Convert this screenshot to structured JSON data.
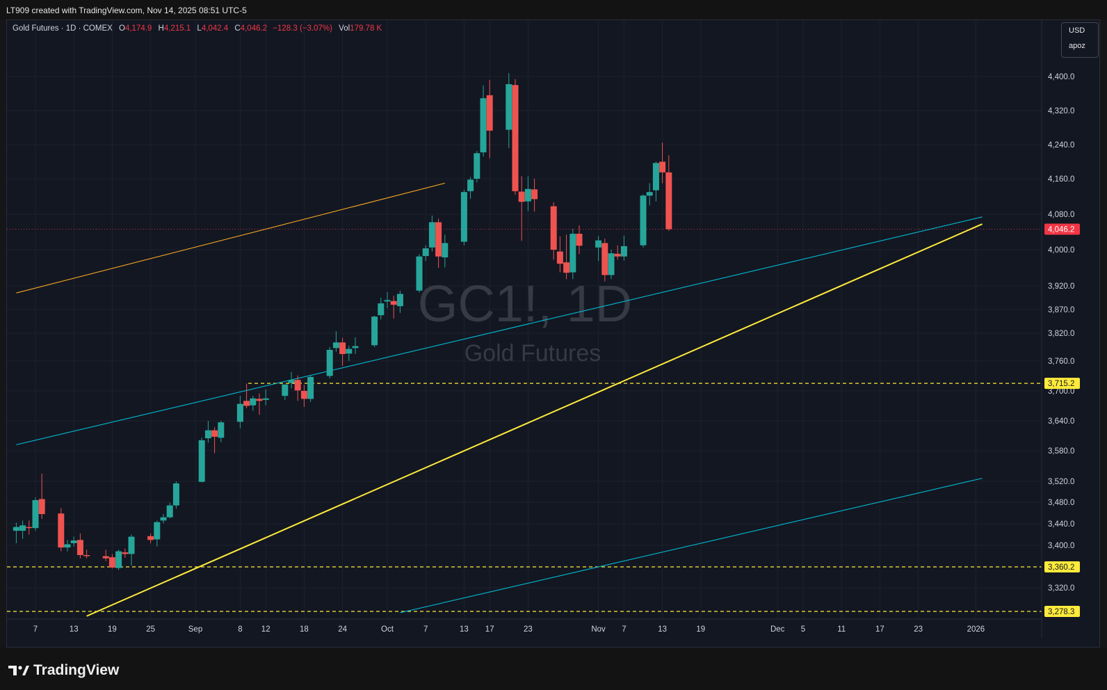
{
  "header": {
    "credit": "LT909 created with TradingView.com, Nov 14, 2025 08:51 UTC-5"
  },
  "legend": {
    "symbol": "Gold Futures · 1D · COMEX",
    "open_label": "O",
    "open": "4,174.9",
    "high_label": "H",
    "high": "4,215.1",
    "low_label": "L",
    "low": "4,042.4",
    "close_label": "C",
    "close": "4,046.2",
    "change": "−128.3 (−3.07%)",
    "vol_label": "Vol",
    "vol": "179.78 K"
  },
  "currency": {
    "unit": "USD",
    "scale": "apoz"
  },
  "watermark": {
    "ticker": "GC1!, 1D",
    "name": "Gold Futures"
  },
  "brand": {
    "name": "TradingView"
  },
  "colors": {
    "up": "#26a69a",
    "down": "#ef5350",
    "background": "#131722",
    "grid": "#1e222d",
    "yellow": "#ffeb3b",
    "cyan": "#00bcd4",
    "orange": "#f5a623",
    "price_label": "#f23645"
  },
  "chart_data": {
    "type": "candlestick",
    "title": "Gold Futures · 1D · COMEX",
    "y_ticks": [
      3320,
      3360.2,
      3400,
      3440,
      3480,
      3520,
      3580,
      3640,
      3700,
      3760,
      3820,
      3870,
      3920,
      4000,
      4080,
      4160,
      4240,
      4320,
      4400
    ],
    "y_tick_labels": [
      "3,320.0",
      "",
      "3,400.0",
      "3,440.0",
      "3,480.0",
      "3,520.0",
      "3,580.0",
      "3,640.0",
      "3,700.0",
      "3,760.0",
      "3,820.0",
      "3,870.0",
      "3,920.0",
      "4,000.0",
      "4,080.0",
      "4,160.0",
      "4,240.0",
      "4,320.0",
      "4,400.0"
    ],
    "x_ticks": [
      {
        "date": "2025-08-07",
        "label": "7"
      },
      {
        "date": "2025-08-13",
        "label": "13"
      },
      {
        "date": "2025-08-19",
        "label": "19"
      },
      {
        "date": "2025-08-25",
        "label": "25"
      },
      {
        "date": "2025-09-01",
        "label": "Sep"
      },
      {
        "date": "2025-09-08",
        "label": "8"
      },
      {
        "date": "2025-09-12",
        "label": "12"
      },
      {
        "date": "2025-09-18",
        "label": "18"
      },
      {
        "date": "2025-09-24",
        "label": "24"
      },
      {
        "date": "2025-10-01",
        "label": "Oct"
      },
      {
        "date": "2025-10-07",
        "label": "7"
      },
      {
        "date": "2025-10-13",
        "label": "13"
      },
      {
        "date": "2025-10-17",
        "label": "17"
      },
      {
        "date": "2025-10-23",
        "label": "23"
      },
      {
        "date": "2025-11-03",
        "label": "Nov"
      },
      {
        "date": "2025-11-07",
        "label": "7"
      },
      {
        "date": "2025-11-13",
        "label": "13"
      },
      {
        "date": "2025-11-19",
        "label": "19"
      },
      {
        "date": "2025-12-01",
        "label": "Dec"
      },
      {
        "date": "2025-12-05",
        "label": "5"
      },
      {
        "date": "2025-12-11",
        "label": "11"
      },
      {
        "date": "2025-12-17",
        "label": "17"
      },
      {
        "date": "2025-12-23",
        "label": "23"
      },
      {
        "date": "2026-01-01",
        "label": "2026"
      }
    ],
    "price_labels": [
      {
        "value": 4046.2,
        "text": "4,046.2",
        "color": "#f23645",
        "text_color": "#ffffff"
      },
      {
        "value": 3715.2,
        "text": "3,715.2",
        "color": "#ffeb3b",
        "text_color": "#131722"
      },
      {
        "value": 3360.2,
        "text": "3,360.2",
        "color": "#ffeb3b",
        "text_color": "#131722"
      },
      {
        "value": 3278.3,
        "text": "3,278.3",
        "color": "#ffeb3b",
        "text_color": "#131722"
      }
    ],
    "horizontal_lines": [
      {
        "value": 3715.2,
        "color": "#ffeb3b",
        "style": "dashed"
      },
      {
        "value": 3360.2,
        "color": "#ffeb3b",
        "style": "dashed"
      },
      {
        "value": 3278.3,
        "color": "#ffeb3b",
        "style": "dashed"
      },
      {
        "value": 4046.2,
        "color": "#f23645",
        "style": "dotted"
      }
    ],
    "trendlines": [
      {
        "color": "#f5a623",
        "from": {
          "date": "2025-08-04",
          "price": 3905
        },
        "to": {
          "date": "2025-10-10",
          "price": 4150
        }
      },
      {
        "color": "#00bcd4",
        "from": {
          "date": "2025-08-04",
          "price": 3592
        },
        "to": {
          "date": "2026-01-02",
          "price": 4074
        }
      },
      {
        "color": "#00bcd4",
        "from": {
          "date": "2025-10-03",
          "price": 3276
        },
        "to": {
          "date": "2026-01-02",
          "price": 3526
        }
      },
      {
        "color": "#ffeb3b",
        "from": {
          "date": "2025-08-15",
          "price": 3270
        },
        "to": {
          "date": "2026-01-02",
          "price": 4058
        }
      }
    ],
    "candles": [
      {
        "date": "2025-08-04",
        "o": 3427,
        "h": 3442,
        "l": 3404,
        "c": 3434
      },
      {
        "date": "2025-08-05",
        "o": 3427,
        "h": 3446,
        "l": 3412,
        "c": 3437
      },
      {
        "date": "2025-08-06",
        "o": 3434,
        "h": 3446,
        "l": 3420,
        "c": 3432
      },
      {
        "date": "2025-08-07",
        "o": 3432,
        "h": 3489,
        "l": 3427,
        "c": 3484
      },
      {
        "date": "2025-08-08",
        "o": 3486,
        "h": 3535,
        "l": 3449,
        "c": 3458
      },
      {
        "date": "2025-08-11",
        "o": 3459,
        "h": 3469,
        "l": 3389,
        "c": 3396
      },
      {
        "date": "2025-08-12",
        "o": 3396,
        "h": 3410,
        "l": 3389,
        "c": 3402
      },
      {
        "date": "2025-08-13",
        "o": 3404,
        "h": 3416,
        "l": 3398,
        "c": 3409
      },
      {
        "date": "2025-08-14",
        "o": 3410,
        "h": 3422,
        "l": 3376,
        "c": 3382
      },
      {
        "date": "2025-08-15",
        "o": 3382,
        "h": 3392,
        "l": 3376,
        "c": 3380
      },
      {
        "date": "2025-08-18",
        "o": 3380,
        "h": 3392,
        "l": 3371,
        "c": 3376
      },
      {
        "date": "2025-08-19",
        "o": 3378,
        "h": 3384,
        "l": 3357,
        "c": 3359
      },
      {
        "date": "2025-08-20",
        "o": 3358,
        "h": 3392,
        "l": 3354,
        "c": 3389
      },
      {
        "date": "2025-08-21",
        "o": 3387,
        "h": 3394,
        "l": 3377,
        "c": 3384
      },
      {
        "date": "2025-08-22",
        "o": 3384,
        "h": 3420,
        "l": 3363,
        "c": 3416
      },
      {
        "date": "2025-08-25",
        "o": 3417,
        "h": 3422,
        "l": 3404,
        "c": 3410
      },
      {
        "date": "2025-08-26",
        "o": 3411,
        "h": 3446,
        "l": 3398,
        "c": 3443
      },
      {
        "date": "2025-08-27",
        "o": 3446,
        "h": 3458,
        "l": 3441,
        "c": 3452
      },
      {
        "date": "2025-08-28",
        "o": 3452,
        "h": 3479,
        "l": 3450,
        "c": 3474
      },
      {
        "date": "2025-08-29",
        "o": 3474,
        "h": 3520,
        "l": 3468,
        "c": 3516
      },
      {
        "date": "2025-09-02",
        "o": 3519,
        "h": 3606,
        "l": 3518,
        "c": 3601
      },
      {
        "date": "2025-09-03",
        "o": 3605,
        "h": 3640,
        "l": 3596,
        "c": 3621
      },
      {
        "date": "2025-09-04",
        "o": 3621,
        "h": 3627,
        "l": 3575,
        "c": 3608
      },
      {
        "date": "2025-09-05",
        "o": 3606,
        "h": 3640,
        "l": 3597,
        "c": 3637
      },
      {
        "date": "2025-09-08",
        "o": 3638,
        "h": 3690,
        "l": 3625,
        "c": 3674
      },
      {
        "date": "2025-09-09",
        "o": 3680,
        "h": 3715,
        "l": 3665,
        "c": 3670
      },
      {
        "date": "2025-09-10",
        "o": 3671,
        "h": 3690,
        "l": 3660,
        "c": 3685
      },
      {
        "date": "2025-09-11",
        "o": 3684,
        "h": 3695,
        "l": 3652,
        "c": 3680
      },
      {
        "date": "2025-09-12",
        "o": 3682,
        "h": 3703,
        "l": 3671,
        "c": 3685
      },
      {
        "date": "2025-09-15",
        "o": 3690,
        "h": 3712,
        "l": 3682,
        "c": 3713
      },
      {
        "date": "2025-09-16",
        "o": 3716,
        "h": 3738,
        "l": 3705,
        "c": 3722
      },
      {
        "date": "2025-09-17",
        "o": 3722,
        "h": 3731,
        "l": 3680,
        "c": 3701
      },
      {
        "date": "2025-09-18",
        "o": 3700,
        "h": 3712,
        "l": 3668,
        "c": 3684
      },
      {
        "date": "2025-09-19",
        "o": 3684,
        "h": 3732,
        "l": 3678,
        "c": 3728
      },
      {
        "date": "2025-09-22",
        "o": 3730,
        "h": 3790,
        "l": 3725,
        "c": 3784
      },
      {
        "date": "2025-09-23",
        "o": 3788,
        "h": 3824,
        "l": 3780,
        "c": 3800
      },
      {
        "date": "2025-09-24",
        "o": 3800,
        "h": 3810,
        "l": 3750,
        "c": 3775
      },
      {
        "date": "2025-09-25",
        "o": 3776,
        "h": 3793,
        "l": 3760,
        "c": 3786
      },
      {
        "date": "2025-09-26",
        "o": 3788,
        "h": 3811,
        "l": 3775,
        "c": 3792
      },
      {
        "date": "2025-09-29",
        "o": 3794,
        "h": 3857,
        "l": 3790,
        "c": 3855
      },
      {
        "date": "2025-09-30",
        "o": 3858,
        "h": 3895,
        "l": 3849,
        "c": 3883
      },
      {
        "date": "2025-10-01",
        "o": 3887,
        "h": 3907,
        "l": 3873,
        "c": 3890
      },
      {
        "date": "2025-10-02",
        "o": 3888,
        "h": 3899,
        "l": 3851,
        "c": 3880
      },
      {
        "date": "2025-10-03",
        "o": 3877,
        "h": 3910,
        "l": 3863,
        "c": 3903
      },
      {
        "date": "2025-10-06",
        "o": 3910,
        "h": 3990,
        "l": 3906,
        "c": 3985
      },
      {
        "date": "2025-10-07",
        "o": 3986,
        "h": 4010,
        "l": 3975,
        "c": 4003
      },
      {
        "date": "2025-10-08",
        "o": 4005,
        "h": 4077,
        "l": 3996,
        "c": 4062
      },
      {
        "date": "2025-10-09",
        "o": 4062,
        "h": 4070,
        "l": 3960,
        "c": 3985
      },
      {
        "date": "2025-10-10",
        "o": 3983,
        "h": 4034,
        "l": 3961,
        "c": 4015
      },
      {
        "date": "2025-10-13",
        "o": 4018,
        "h": 4135,
        "l": 4010,
        "c": 4130
      },
      {
        "date": "2025-10-14",
        "o": 4132,
        "h": 4164,
        "l": 4115,
        "c": 4158
      },
      {
        "date": "2025-10-15",
        "o": 4160,
        "h": 4225,
        "l": 4152,
        "c": 4220
      },
      {
        "date": "2025-10-16",
        "o": 4222,
        "h": 4379,
        "l": 4212,
        "c": 4349
      },
      {
        "date": "2025-10-17",
        "o": 4356,
        "h": 4392,
        "l": 4208,
        "c": 4273
      },
      {
        "date": "2025-10-20",
        "o": 4275,
        "h": 4408,
        "l": 4232,
        "c": 4382
      },
      {
        "date": "2025-10-21",
        "o": 4380,
        "h": 4394,
        "l": 4124,
        "c": 4132
      },
      {
        "date": "2025-10-22",
        "o": 4131,
        "h": 4166,
        "l": 4020,
        "c": 4108
      },
      {
        "date": "2025-10-23",
        "o": 4109,
        "h": 4166,
        "l": 4087,
        "c": 4137
      },
      {
        "date": "2025-10-24",
        "o": 4136,
        "h": 4160,
        "l": 4086,
        "c": 4114
      },
      {
        "date": "2025-10-27",
        "o": 4098,
        "h": 4107,
        "l": 3978,
        "c": 4000
      },
      {
        "date": "2025-10-28",
        "o": 3996,
        "h": 4030,
        "l": 3950,
        "c": 3969
      },
      {
        "date": "2025-10-29",
        "o": 3972,
        "h": 4034,
        "l": 3935,
        "c": 3949
      },
      {
        "date": "2025-10-30",
        "o": 3950,
        "h": 4047,
        "l": 3935,
        "c": 4036
      },
      {
        "date": "2025-10-31",
        "o": 4036,
        "h": 4055,
        "l": 3990,
        "c": 4009
      },
      {
        "date": "2025-11-03",
        "o": 4005,
        "h": 4031,
        "l": 3975,
        "c": 4021
      },
      {
        "date": "2025-11-04",
        "o": 4015,
        "h": 4025,
        "l": 3930,
        "c": 3944
      },
      {
        "date": "2025-11-05",
        "o": 3944,
        "h": 4000,
        "l": 3935,
        "c": 3992
      },
      {
        "date": "2025-11-06",
        "o": 3991,
        "h": 4010,
        "l": 3978,
        "c": 3985
      },
      {
        "date": "2025-11-07",
        "o": 3985,
        "h": 4032,
        "l": 3976,
        "c": 4008
      },
      {
        "date": "2025-11-10",
        "o": 4010,
        "h": 4125,
        "l": 4005,
        "c": 4122
      },
      {
        "date": "2025-11-11",
        "o": 4122,
        "h": 4150,
        "l": 4100,
        "c": 4130
      },
      {
        "date": "2025-11-12",
        "o": 4134,
        "h": 4200,
        "l": 4109,
        "c": 4197
      },
      {
        "date": "2025-11-13",
        "o": 4200,
        "h": 4245,
        "l": 4150,
        "c": 4175
      },
      {
        "date": "2025-11-14",
        "o": 4174.9,
        "h": 4215.1,
        "l": 4042.4,
        "c": 4046.2
      }
    ]
  }
}
